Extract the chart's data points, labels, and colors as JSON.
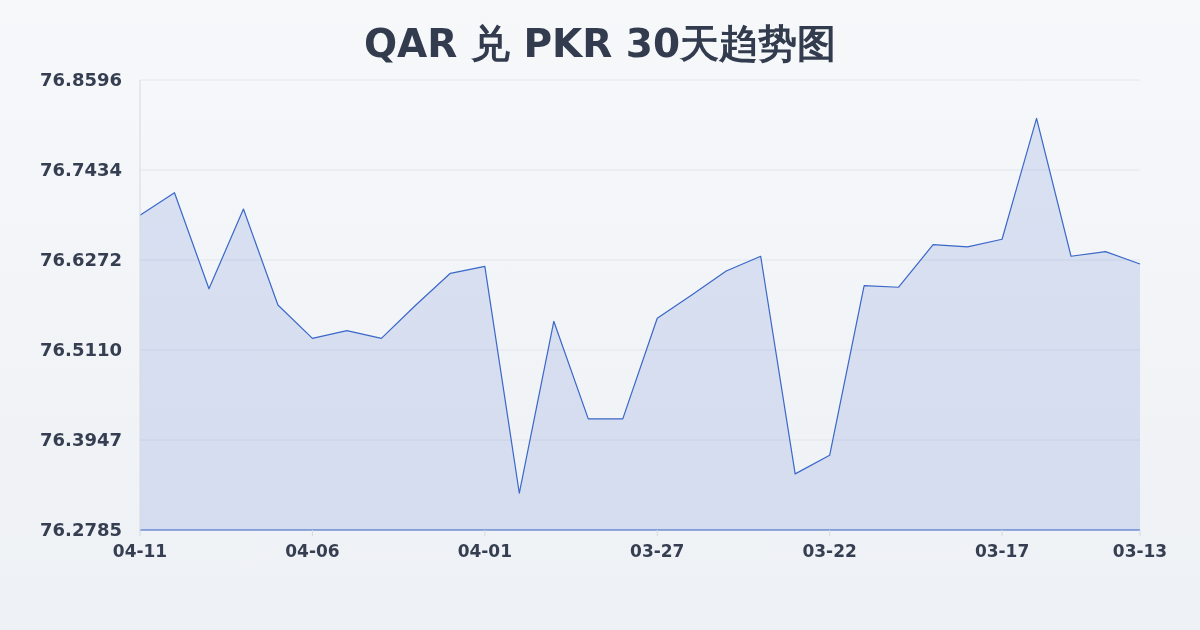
{
  "chart_data": {
    "type": "area",
    "title": "QAR 兑 PKR 30天趋势图",
    "categories": [
      "04-11",
      null,
      null,
      null,
      null,
      "04-06",
      null,
      null,
      null,
      null,
      "04-01",
      null,
      null,
      null,
      null,
      "03-27",
      null,
      null,
      null,
      null,
      "03-22",
      null,
      null,
      null,
      null,
      "03-17",
      null,
      null,
      null,
      "03-13"
    ],
    "values": [
      76.685,
      76.714,
      76.59,
      76.693,
      76.569,
      76.526,
      76.536,
      76.526,
      76.569,
      76.61,
      76.619,
      76.326,
      76.548,
      76.422,
      76.422,
      76.552,
      76.582,
      76.613,
      76.632,
      76.351,
      76.375,
      76.594,
      76.592,
      76.647,
      76.644,
      76.654,
      76.81,
      76.632,
      76.638,
      76.622
    ],
    "color": "#3a67c8",
    "ylim": [
      76.2785,
      76.8596
    ],
    "yticks": [
      76.2785,
      76.3947,
      {
        "value": 76.511,
        "label": "76.5110"
      },
      76.6272,
      76.7434,
      76.8596
    ],
    "grid": "y",
    "marker": "none",
    "line_style": "solid"
  }
}
